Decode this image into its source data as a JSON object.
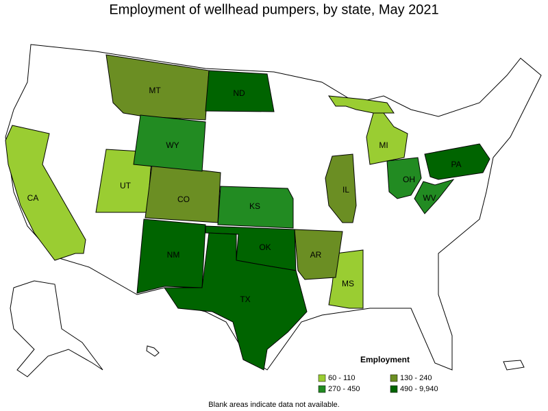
{
  "title": "Employment of wellhead pumpers, by state, May 2021",
  "legend": {
    "title": "Employment",
    "items": [
      {
        "label": "60 - 110",
        "color": "#9acd32"
      },
      {
        "label": "130 - 240",
        "color": "#6b8e23"
      },
      {
        "label": "270 - 450",
        "color": "#228b22"
      },
      {
        "label": "490 - 9,940",
        "color": "#006400"
      }
    ]
  },
  "states": [
    {
      "label": "CA",
      "bin": 0
    },
    {
      "label": "UT",
      "bin": 0
    },
    {
      "label": "MI",
      "bin": 0
    },
    {
      "label": "MS",
      "bin": 0
    },
    {
      "label": "MT",
      "bin": 1
    },
    {
      "label": "CO",
      "bin": 1
    },
    {
      "label": "IL",
      "bin": 1
    },
    {
      "label": "AR",
      "bin": 1
    },
    {
      "label": "WY",
      "bin": 2
    },
    {
      "label": "KS",
      "bin": 2
    },
    {
      "label": "OH",
      "bin": 2
    },
    {
      "label": "WV",
      "bin": 2
    },
    {
      "label": "ND",
      "bin": 3
    },
    {
      "label": "NM",
      "bin": 3
    },
    {
      "label": "OK",
      "bin": 3
    },
    {
      "label": "TX",
      "bin": 3
    },
    {
      "label": "PA",
      "bin": 3
    }
  ],
  "note": "Blank areas indicate data not available."
}
